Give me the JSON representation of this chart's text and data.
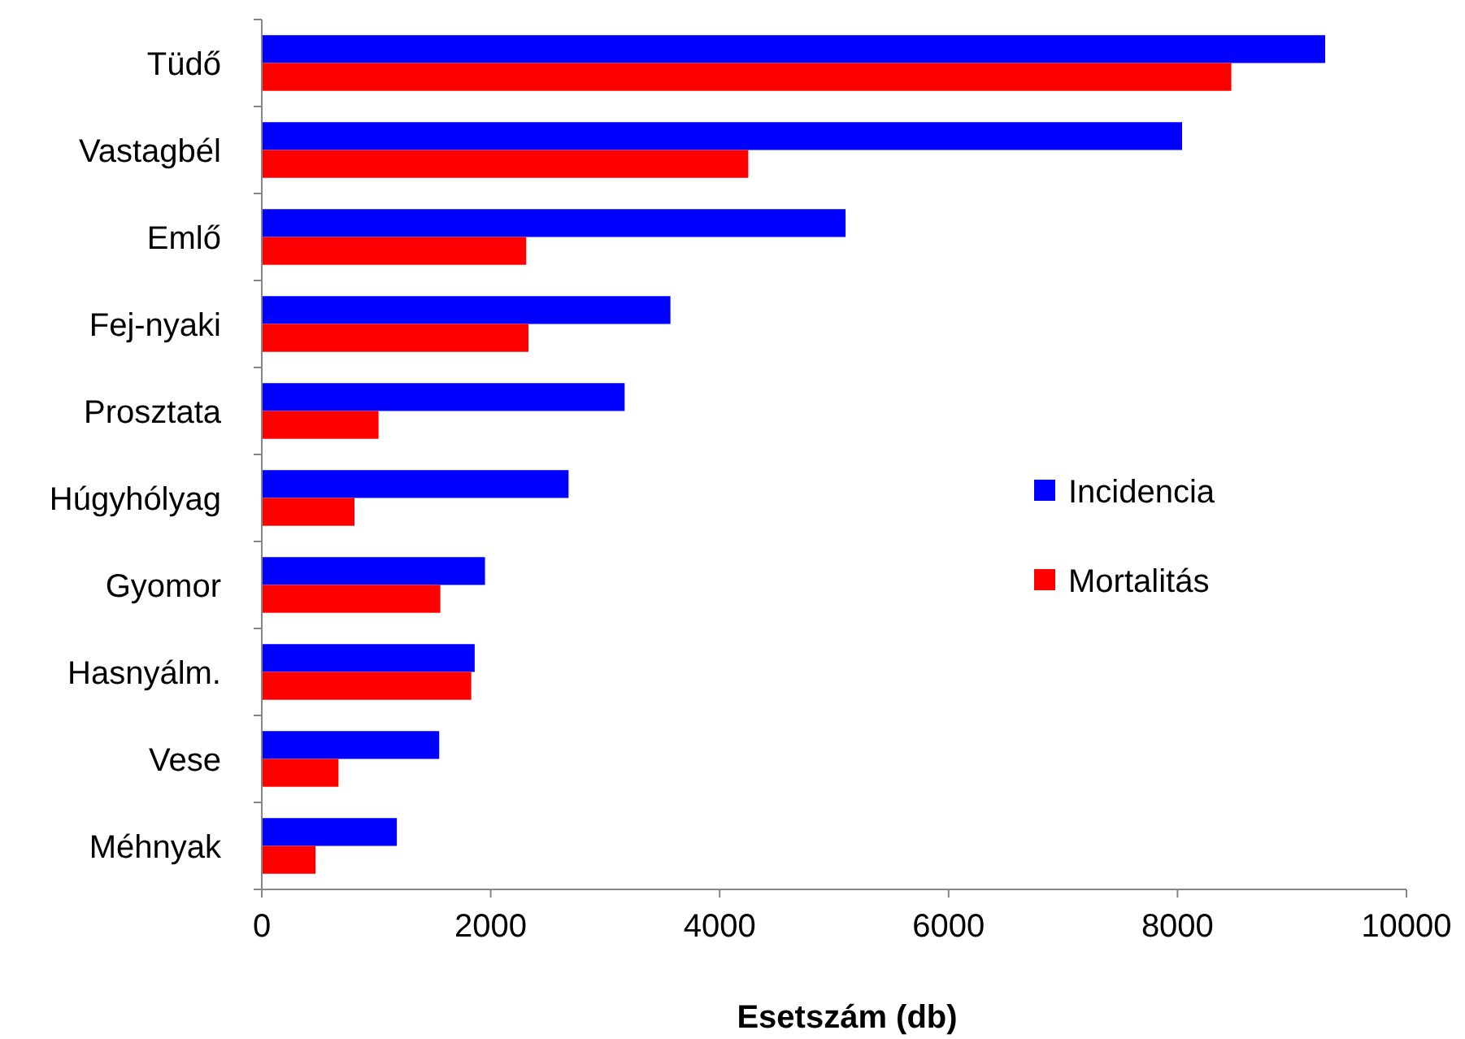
{
  "chart_data": {
    "type": "bar",
    "orientation": "horizontal",
    "xlabel": "Esetszám (db)",
    "categories": [
      "Tüdő",
      "Vastagbél",
      "Emlő",
      "Fej-nyaki",
      "Prosztata",
      "Húgyhólyag",
      "Gyomor",
      "Hasnyálm.",
      "Vese",
      "Méhnyak"
    ],
    "series": [
      {
        "name": "Incidencia",
        "color": "#0000ff",
        "values": [
          9290,
          8040,
          5100,
          3570,
          3170,
          2680,
          1950,
          1860,
          1550,
          1180
        ]
      },
      {
        "name": "Mortalitás",
        "color": "#ff0000",
        "values": [
          8470,
          4250,
          2310,
          2330,
          1020,
          810,
          1560,
          1830,
          670,
          470
        ]
      }
    ],
    "xlim": [
      0,
      10000
    ],
    "xticks": [
      0,
      2000,
      4000,
      6000,
      8000,
      10000
    ],
    "grid": false,
    "legend": "right"
  }
}
